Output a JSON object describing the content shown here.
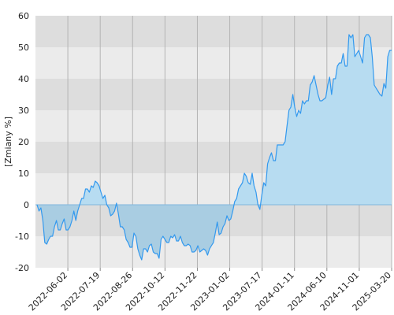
{
  "chart_data": {
    "type": "area",
    "ylabel": "[Zmiany %]",
    "ylim": [
      -20,
      60
    ],
    "y_ticks": [
      60,
      50,
      40,
      30,
      20,
      10,
      0,
      -10,
      -20
    ],
    "x_tick_labels": [
      "2022-06-02",
      "2022-07-19",
      "2022-08-26",
      "2022-10-12",
      "2022-11-22",
      "2023-01-02",
      "2023-07-17",
      "2024-01-11",
      "2024-06-10",
      "2024-11-01",
      "2025-03-20"
    ],
    "grid": true,
    "band_colors": [
      "#dddddd",
      "#ebebeb"
    ],
    "line_color": "#3399ee",
    "fill_positive": "#b7dcf1",
    "fill_negative": "#a9cde2",
    "series": [
      {
        "values": [
          0,
          -2,
          -1,
          -5,
          -12,
          -12.5,
          -11,
          -10,
          -10,
          -7,
          -5,
          -8,
          -8,
          -6,
          -4.5,
          -8,
          -8,
          -7,
          -5,
          -2,
          -5,
          -2,
          0,
          2,
          2,
          5,
          5,
          4,
          6,
          5.5,
          7.5,
          7,
          6,
          4,
          2,
          3,
          0,
          -1,
          -3.5,
          -3,
          -2,
          0.5,
          -3,
          -7,
          -7,
          -8,
          -11,
          -12,
          -13.5,
          -13.5,
          -9,
          -10,
          -14,
          -16,
          -17.5,
          -14,
          -14,
          -15,
          -13,
          -12.5,
          -15,
          -15.5,
          -15.5,
          -17,
          -11,
          -10,
          -11,
          -12,
          -12,
          -10,
          -10.5,
          -9.5,
          -11.5,
          -11.5,
          -10,
          -12,
          -13,
          -13,
          -12.5,
          -13,
          -15,
          -15,
          -14.5,
          -13,
          -15,
          -14.5,
          -14,
          -14.5,
          -16,
          -14,
          -13,
          -12,
          -9,
          -5.5,
          -9.5,
          -9,
          -7,
          -6,
          -3.5,
          -5,
          -4.5,
          -2,
          1,
          2,
          5,
          6,
          7,
          10,
          9,
          7,
          6.5,
          10,
          6,
          4,
          0,
          -1.5,
          3,
          7,
          6,
          13,
          15,
          16.5,
          14,
          14,
          19,
          19,
          19,
          19,
          20,
          25,
          30,
          31,
          35,
          31,
          28,
          30,
          29,
          33,
          32,
          33,
          33,
          38,
          39,
          41,
          38,
          35,
          33,
          33,
          33.5,
          34,
          38,
          40.5,
          35,
          40,
          40,
          44,
          45,
          45,
          48,
          44,
          44,
          54,
          53,
          54,
          47,
          48,
          49,
          47,
          45,
          53,
          54,
          54,
          53,
          47,
          38,
          37,
          36,
          35,
          34.5,
          38.5,
          37,
          47,
          49,
          49
        ]
      }
    ]
  }
}
